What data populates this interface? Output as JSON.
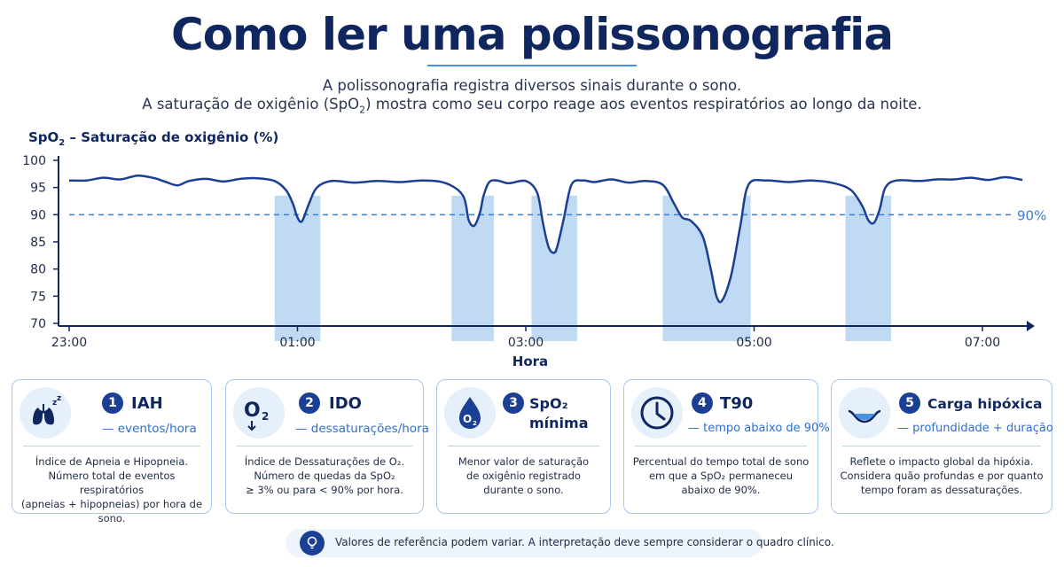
{
  "header": {
    "title": "Como ler uma polissonografia",
    "subtitle_line1": "A polissonografia registra diversos sinais durante o sono.",
    "subtitle_line2_pre": "A saturação de oxigênio (SpO",
    "subtitle_line2_sub": "2",
    "subtitle_line2_post": ") mostra como seu corpo reage aos eventos respiratórios ao longo da noite."
  },
  "chart_data": {
    "type": "line",
    "title_pre": "SpO",
    "title_sub": "2",
    "title_post": " – Saturação de oxigênio (%)",
    "xlabel": "Hora",
    "ylabel": "",
    "ylim": [
      70,
      100
    ],
    "yticks": [
      100,
      95,
      90,
      85,
      80,
      75,
      70
    ],
    "xlim": [
      0,
      8.35
    ],
    "xticks": [
      {
        "value": 0,
        "label": "23:00"
      },
      {
        "value": 2,
        "label": "01:00"
      },
      {
        "value": 4,
        "label": "03:00"
      },
      {
        "value": 6,
        "label": "05:00"
      },
      {
        "value": 8,
        "label": "07:00"
      }
    ],
    "threshold": {
      "value": 90,
      "label": "90%"
    },
    "grid": false,
    "series": [
      {
        "x": [
          0.0,
          0.15,
          0.3,
          0.45,
          0.6,
          0.75,
          0.85,
          0.95,
          1.05,
          1.2,
          1.35,
          1.5,
          1.65,
          1.8,
          1.9,
          1.96,
          2.0,
          2.04,
          2.1,
          2.17,
          2.3,
          2.5,
          2.7,
          2.9,
          3.1,
          3.3,
          3.45,
          3.5,
          3.55,
          3.6,
          3.63,
          3.68,
          3.75,
          3.85,
          4.0,
          4.1,
          4.15,
          4.2,
          4.25,
          4.28,
          4.33,
          4.4,
          4.5,
          4.6,
          4.75,
          4.9,
          5.05,
          5.2,
          5.3,
          5.37,
          5.45,
          5.55,
          5.62,
          5.67,
          5.72,
          5.8,
          5.88,
          5.95,
          6.1,
          6.3,
          6.5,
          6.7,
          6.85,
          6.95,
          7.0,
          7.05,
          7.1,
          7.15,
          7.25,
          7.45,
          7.6,
          7.75,
          7.9,
          8.05,
          8.2,
          8.35
        ],
        "y": [
          96.3,
          96.3,
          96.8,
          96.5,
          97.2,
          96.7,
          96.0,
          95.4,
          96.2,
          96.6,
          96.1,
          96.6,
          96.7,
          96.2,
          94.5,
          92.0,
          89.5,
          88.8,
          92.0,
          95.0,
          96.2,
          95.9,
          96.2,
          96.0,
          96.3,
          95.8,
          93.5,
          89.0,
          88.0,
          90.5,
          93.5,
          96.0,
          96.3,
          95.8,
          96.2,
          94.0,
          88.5,
          84.0,
          83.0,
          84.5,
          89.0,
          95.5,
          96.3,
          96.0,
          96.5,
          95.9,
          96.2,
          95.5,
          92.0,
          89.5,
          88.8,
          86.0,
          80.0,
          75.0,
          74.2,
          79.0,
          88.0,
          95.5,
          96.3,
          96.0,
          96.3,
          95.8,
          94.5,
          91.5,
          89.0,
          88.5,
          91.0,
          95.0,
          96.3,
          96.2,
          96.5,
          96.5,
          96.8,
          96.4,
          96.9,
          96.4
        ]
      }
    ]
  },
  "cards": [
    {
      "number": "1",
      "title": "IAH",
      "title2": "",
      "subtitle": "— eventos/hora",
      "icon": "lungs-icon",
      "desc": [
        "Índice de Apneia e Hipopneia.",
        "Número total de eventos respiratórios",
        "(apneias + hipopneias) por hora de sono."
      ]
    },
    {
      "number": "2",
      "title": "IDO",
      "title2": "",
      "subtitle": "— dessaturações/hora",
      "icon": "oxygen-down-icon",
      "desc": [
        "Índice de Dessaturações de O₂.",
        "Número de quedas da SpO₂",
        "≥ 3% ou para < 90% por hora."
      ]
    },
    {
      "number": "3",
      "title": "SpO₂",
      "title2": "mínima",
      "subtitle": "",
      "icon": "oxygen-drop-icon",
      "desc": [
        "Menor valor de saturação",
        "de oxigênio registrado",
        "durante o sono."
      ]
    },
    {
      "number": "4",
      "title": "T90",
      "title2": "",
      "subtitle": "— tempo abaixo de 90%",
      "icon": "clock-icon",
      "desc": [
        "Percentual do tempo total de sono",
        "em que a SpO₂ permaneceu",
        "abaixo de 90%."
      ]
    },
    {
      "number": "5",
      "title": "Carga hipóxica",
      "title2": "",
      "subtitle": "— profundidade + duração",
      "icon": "hypoxic-load-icon",
      "desc": [
        "Reflete o impacto global da hipóxia.",
        "Considera quão profundas e por quanto",
        "tempo foram as dessaturações."
      ]
    }
  ],
  "footer": {
    "text": "Valores de referência podem variar. A interpretação deve sempre considerar o quadro clínico.",
    "icon": "lightbulb-icon"
  },
  "colors": {
    "navy": "#10265e",
    "line": "#1b3f94",
    "fill": "#b9d6f3",
    "threshold": "#3a7fd0",
    "border": "#a8c8ee"
  }
}
